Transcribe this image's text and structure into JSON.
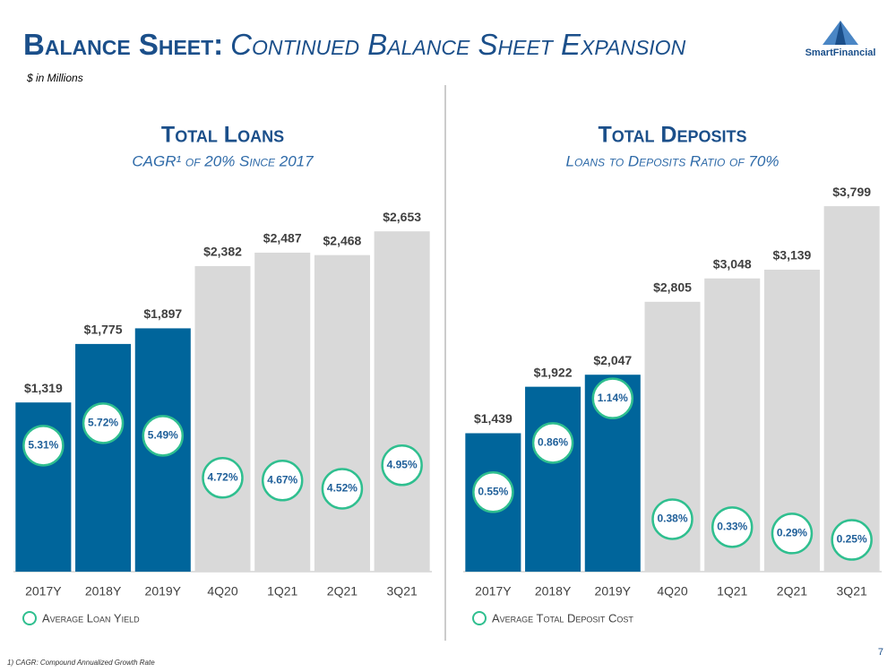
{
  "header": {
    "title": [
      "Balance Sheet:",
      "Continued Balance Sheet Expansion"
    ],
    "units": "$ in Millions",
    "logo": "SmartFinancial",
    "footnote": "1) CAGR: Compound Annualized Growth Rate",
    "page": "7"
  },
  "chart_data": [
    {
      "type": "bar",
      "title": "Total Loans",
      "subtitle": "CAGR¹ of 20% Since 2017",
      "categories": [
        "2017Y",
        "2018Y",
        "2019Y",
        "4Q20",
        "1Q21",
        "2Q21",
        "3Q21"
      ],
      "values": [
        1319,
        1775,
        1897,
        2382,
        2487,
        2468,
        2653
      ],
      "value_labels": [
        "$1,319",
        "$1,775",
        "$1,897",
        "$2,382",
        "$2,487",
        "$2,468",
        "$2,653"
      ],
      "colors": [
        "#00659b",
        "#00659b",
        "#00659b",
        "#d9d9d9",
        "#d9d9d9",
        "#d9d9d9",
        "#d9d9d9"
      ],
      "ylim": [
        0,
        2850
      ],
      "y2lim": [
        3.0,
        9.7
      ],
      "yield": {
        "name": "Average Loan Yield",
        "axis": "y2",
        "color": "#2fbf8f",
        "values": [
          5.31,
          5.72,
          5.49,
          4.72,
          4.67,
          4.52,
          4.95
        ],
        "value_labels": [
          "5.31%",
          "5.72%",
          "5.49%",
          "4.72%",
          "4.67%",
          "4.52%",
          "4.95%"
        ]
      }
    },
    {
      "type": "bar",
      "title": "Total Deposits",
      "subtitle": "Loans to Deposits Ratio of 70%",
      "categories": [
        "2017Y",
        "2018Y",
        "2019Y",
        "4Q20",
        "1Q21",
        "2Q21",
        "3Q21"
      ],
      "values": [
        1439,
        1922,
        2047,
        2805,
        3048,
        3139,
        3799
      ],
      "value_labels": [
        "$1,439",
        "$1,922",
        "$2,047",
        "$2,805",
        "$3,048",
        "$3,139",
        "$3,799"
      ],
      "colors": [
        "#00659b",
        "#00659b",
        "#00659b",
        "#d9d9d9",
        "#d9d9d9",
        "#d9d9d9",
        "#d9d9d9"
      ],
      "ylim": [
        0,
        3800
      ],
      "y2lim": [
        0.05,
        2.35
      ],
      "yield": {
        "name": "Average Total Deposit Cost",
        "axis": "y2",
        "color": "#2fbf8f",
        "values": [
          0.55,
          0.86,
          1.14,
          0.38,
          0.33,
          0.29,
          0.25
        ],
        "value_labels": [
          "0.55%",
          "0.86%",
          "1.14%",
          "0.38%",
          "0.33%",
          "0.29%",
          "0.25%"
        ]
      }
    }
  ]
}
